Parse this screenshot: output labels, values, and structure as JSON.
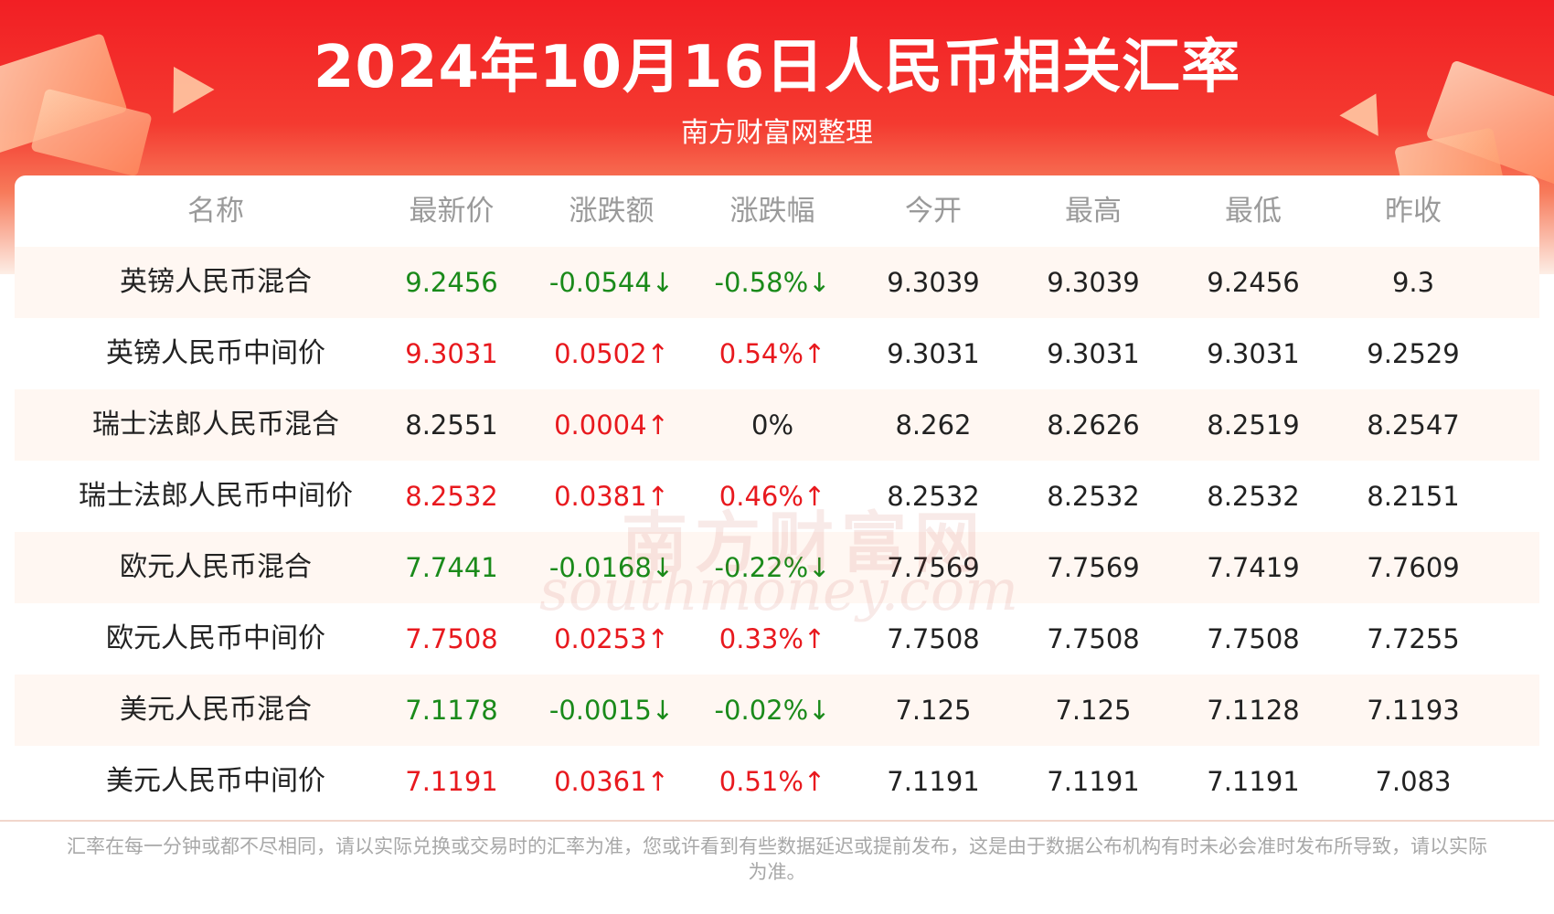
{
  "header": {
    "title": "2024年10月16日人民币相关汇率",
    "subtitle": "南方财富网整理"
  },
  "table": {
    "columns": [
      "名称",
      "最新价",
      "涨跌额",
      "涨跌幅",
      "今开",
      "最高",
      "最低",
      "昨收"
    ],
    "rows": [
      {
        "name": "英镑人民币混合",
        "latest": "9.2456",
        "change": "-0.0544↓",
        "pct": "-0.58%↓",
        "open": "9.3039",
        "high": "9.3039",
        "low": "9.2456",
        "prev": "9.3",
        "trend": "down"
      },
      {
        "name": "英镑人民币中间价",
        "latest": "9.3031",
        "change": "0.0502↑",
        "pct": "0.54%↑",
        "open": "9.3031",
        "high": "9.3031",
        "low": "9.3031",
        "prev": "9.2529",
        "trend": "up"
      },
      {
        "name": "瑞士法郎人民币混合",
        "latest": "8.2551",
        "change": "0.0004↑",
        "pct": "0%",
        "open": "8.262",
        "high": "8.2626",
        "low": "8.2519",
        "prev": "8.2547",
        "trend": "flat"
      },
      {
        "name": "瑞士法郎人民币中间价",
        "latest": "8.2532",
        "change": "0.0381↑",
        "pct": "0.46%↑",
        "open": "8.2532",
        "high": "8.2532",
        "low": "8.2532",
        "prev": "8.2151",
        "trend": "up"
      },
      {
        "name": "欧元人民币混合",
        "latest": "7.7441",
        "change": "-0.0168↓",
        "pct": "-0.22%↓",
        "open": "7.7569",
        "high": "7.7569",
        "low": "7.7419",
        "prev": "7.7609",
        "trend": "down"
      },
      {
        "name": "欧元人民币中间价",
        "latest": "7.7508",
        "change": "0.0253↑",
        "pct": "0.33%↑",
        "open": "7.7508",
        "high": "7.7508",
        "low": "7.7508",
        "prev": "7.7255",
        "trend": "up"
      },
      {
        "name": "美元人民币混合",
        "latest": "7.1178",
        "change": "-0.0015↓",
        "pct": "-0.02%↓",
        "open": "7.125",
        "high": "7.125",
        "low": "7.1128",
        "prev": "7.1193",
        "trend": "down"
      },
      {
        "name": "美元人民币中间价",
        "latest": "7.1191",
        "change": "0.0361↑",
        "pct": "0.51%↑",
        "open": "7.1191",
        "high": "7.1191",
        "low": "7.1191",
        "prev": "7.083",
        "trend": "up"
      }
    ]
  },
  "watermark": {
    "cn": "南方财富网",
    "en": "southmoney.com"
  },
  "footnote": "汇率在每一分钟或都不尽相同，请以实际兑换或交易时的汇率为准，您或许看到有些数据延迟或提前发布，这是由于数据公布机构有时未必会准时发布所导致，请以实际为准。",
  "colors": {
    "up": "#e8191e",
    "down": "#1a8a1a",
    "header_red": "#f21f24"
  }
}
